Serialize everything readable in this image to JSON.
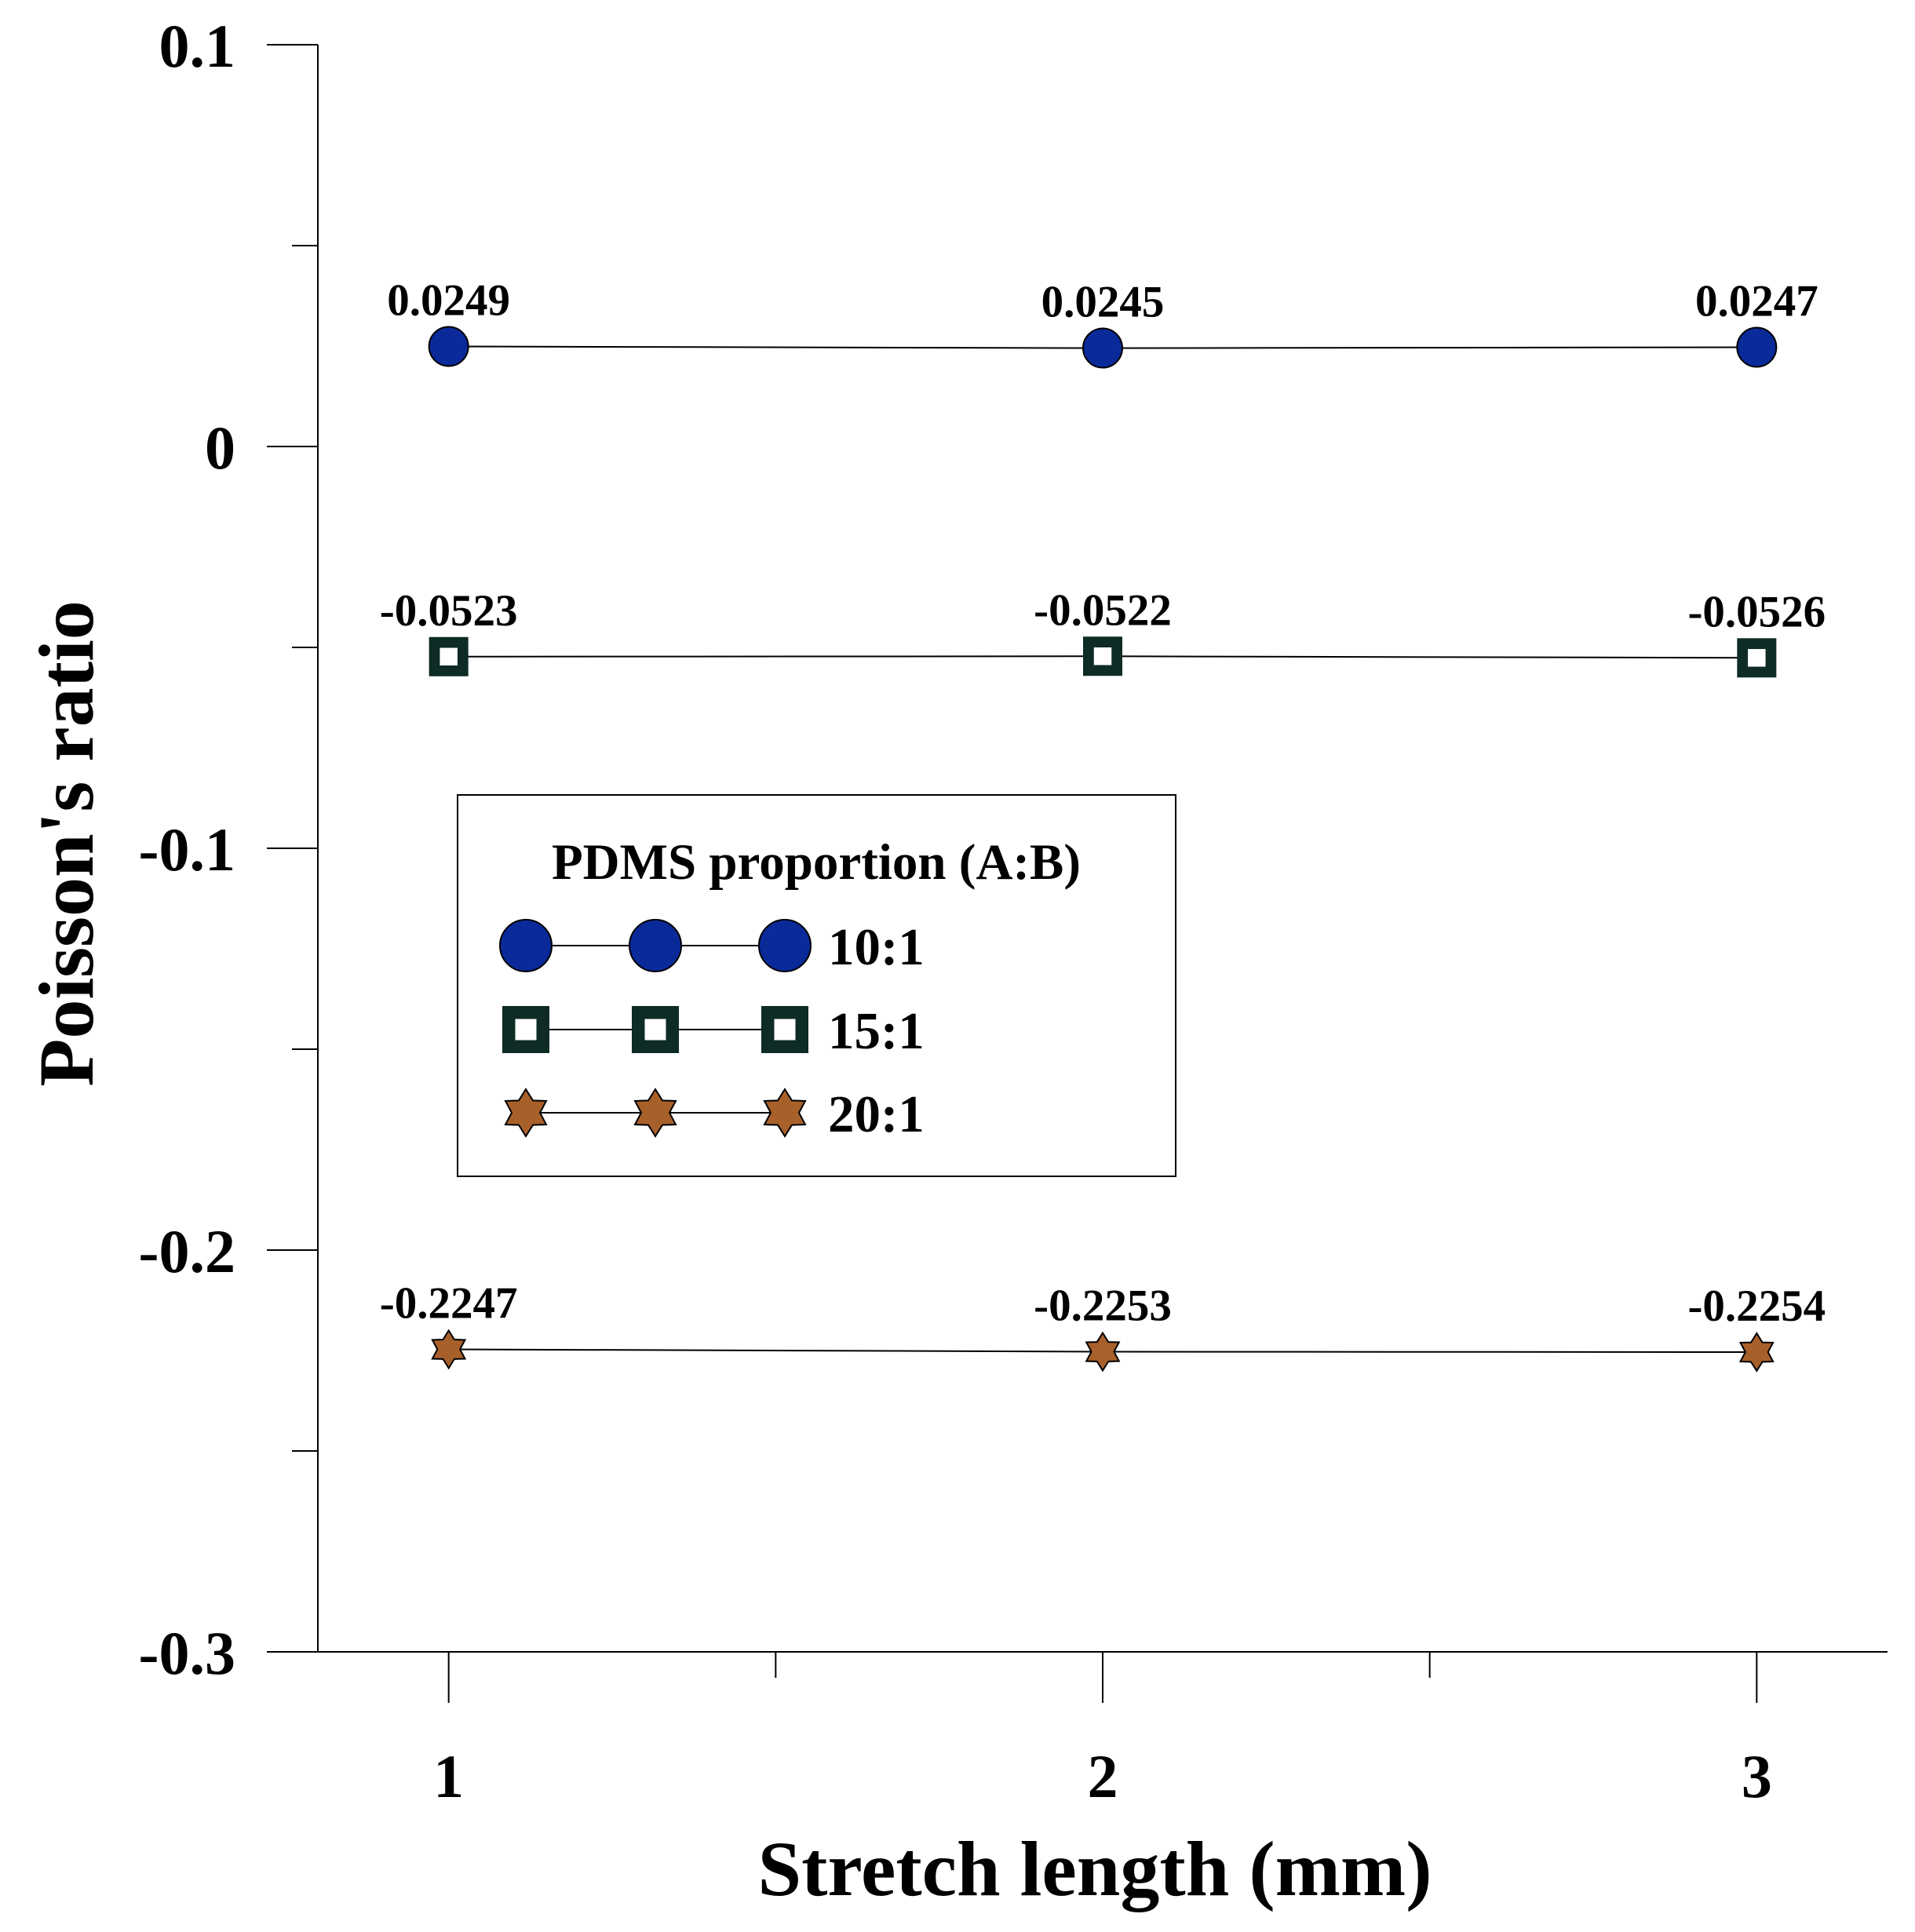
{
  "chart_data": {
    "type": "line",
    "title": "",
    "xlabel": "Stretch length (mm)",
    "ylabel": "Poisson's ratio",
    "x": [
      1,
      2,
      3
    ],
    "x_tick_labels": [
      "1",
      "2",
      "3"
    ],
    "xlim": [
      0.8,
      3.2
    ],
    "ylim": [
      -0.3,
      0.1
    ],
    "y_major_ticks": [
      0.1,
      0,
      -0.1,
      -0.2,
      -0.3
    ],
    "y_tick_labels": [
      "0.1",
      "0",
      "-0.1",
      "-0.2",
      "-0.3"
    ],
    "y_minor_ticks": [
      0.05,
      -0.05,
      -0.15,
      -0.25
    ],
    "x_minor_ticks": [
      1.5,
      2.5
    ],
    "grid": false,
    "legend": {
      "title": "PDMS proportion (A:B)",
      "placement": "center-left"
    },
    "series": [
      {
        "name": "10:1",
        "marker": "circle",
        "color": "#0a2a9a",
        "values": [
          0.0249,
          0.0245,
          0.0247
        ],
        "labels": [
          "0.0249",
          "0.0245",
          "0.0247"
        ]
      },
      {
        "name": "15:1",
        "marker": "square",
        "color": "#0e2b26",
        "values": [
          -0.0523,
          -0.0522,
          -0.0526
        ],
        "labels": [
          "-0.0523",
          "-0.0522",
          "-0.0526"
        ]
      },
      {
        "name": "20:1",
        "marker": "star",
        "color": "#a8602a",
        "values": [
          -0.2247,
          -0.2253,
          -0.2254
        ],
        "labels": [
          "-0.2247",
          "-0.2253",
          "-0.2254"
        ]
      }
    ]
  }
}
